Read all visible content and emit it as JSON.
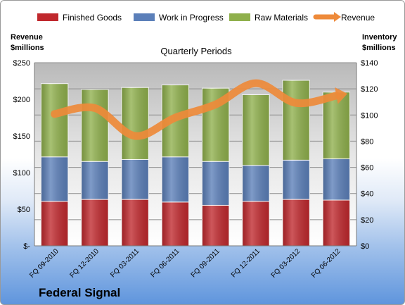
{
  "company": "Federal Signal",
  "chart_data": {
    "type": "bar",
    "stacked": true,
    "title": "Quarterly Periods",
    "categories": [
      "FQ 09-2010",
      "FQ 12-2010",
      "FQ 03-2011",
      "FQ 06-2011",
      "FQ 09-2011",
      "FQ 12-2011",
      "FQ 03-2012",
      "FQ 06-2012"
    ],
    "y_left": {
      "label_line1": "Revenue",
      "label_line2": "$millions",
      "range": [
        0,
        250
      ],
      "ticks": [
        0,
        50,
        100,
        150,
        200,
        250
      ],
      "tick_labels": [
        "$-",
        "$50",
        "$100",
        "$150",
        "$200",
        "$250"
      ]
    },
    "y_right": {
      "label_line1": "Inventory",
      "label_line2": "$millions",
      "range": [
        0,
        140
      ],
      "ticks": [
        0,
        20,
        40,
        60,
        80,
        100,
        120,
        140
      ],
      "tick_labels": [
        "$0",
        "$20",
        "$40",
        "$60",
        "$80",
        "$100",
        "$120",
        "$140"
      ]
    },
    "grid": true,
    "legend_position": "top",
    "series": [
      {
        "name": "Finished Goods",
        "axis": "right",
        "color": "#c0282d",
        "values": [
          34,
          35.5,
          35.5,
          33.5,
          31,
          34,
          35.5,
          35
        ]
      },
      {
        "name": "Work in Progress",
        "axis": "right",
        "color": "#5b7fb9",
        "values": [
          34,
          29,
          30.5,
          34.5,
          33.5,
          27.5,
          30,
          31.5
        ]
      },
      {
        "name": "Raw Materials",
        "axis": "right",
        "color": "#8fb04c",
        "values": [
          56,
          55,
          55,
          55,
          56,
          54,
          61,
          51
        ]
      },
      {
        "name": "Revenue",
        "axis": "left",
        "type": "line",
        "color": "#ee8a3a",
        "values": [
          180,
          188,
          150,
          175,
          193,
          222,
          195,
          205
        ]
      }
    ]
  }
}
